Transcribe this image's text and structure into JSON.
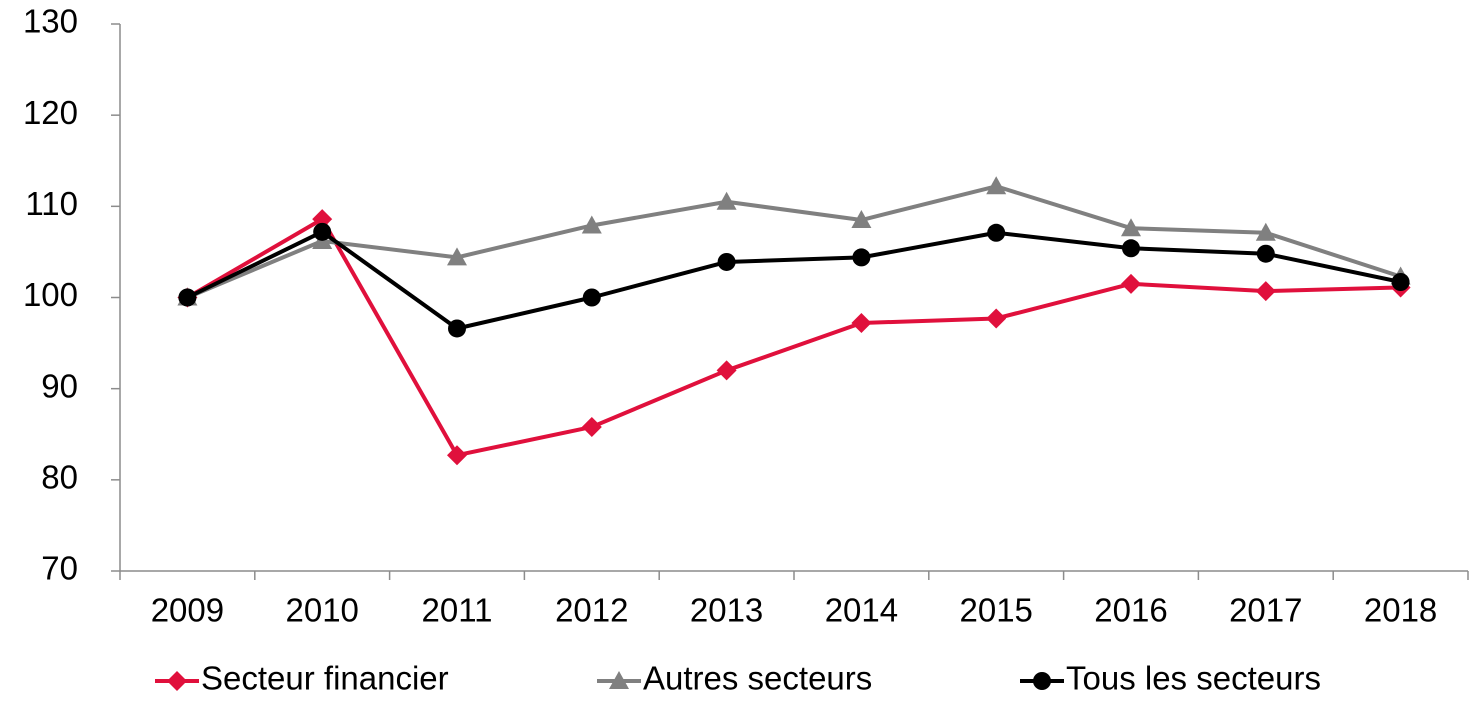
{
  "chart_data": {
    "type": "line",
    "categories": [
      "2009",
      "2010",
      "2011",
      "2012",
      "2013",
      "2014",
      "2015",
      "2016",
      "2017",
      "2018"
    ],
    "series": [
      {
        "name": "Secteur financier",
        "color": "#e0103c",
        "marker": "diamond",
        "values": [
          100,
          108.6,
          82.7,
          85.8,
          92.0,
          97.2,
          97.7,
          101.5,
          100.7,
          101.1
        ]
      },
      {
        "name": "Autres secteurs",
        "color": "#808080",
        "marker": "triangle",
        "values": [
          100,
          106.2,
          104.4,
          107.9,
          110.5,
          108.5,
          112.2,
          107.6,
          107.1,
          102.3
        ]
      },
      {
        "name": "Tous les secteurs",
        "color": "#000000",
        "marker": "circle",
        "values": [
          100,
          107.2,
          96.6,
          100.0,
          103.9,
          104.4,
          107.1,
          105.4,
          104.8,
          101.7
        ]
      }
    ],
    "ylim": [
      70,
      130
    ],
    "yticks": [
      70,
      80,
      90,
      100,
      110,
      120,
      130
    ],
    "grid": false,
    "legend": "bottom"
  }
}
